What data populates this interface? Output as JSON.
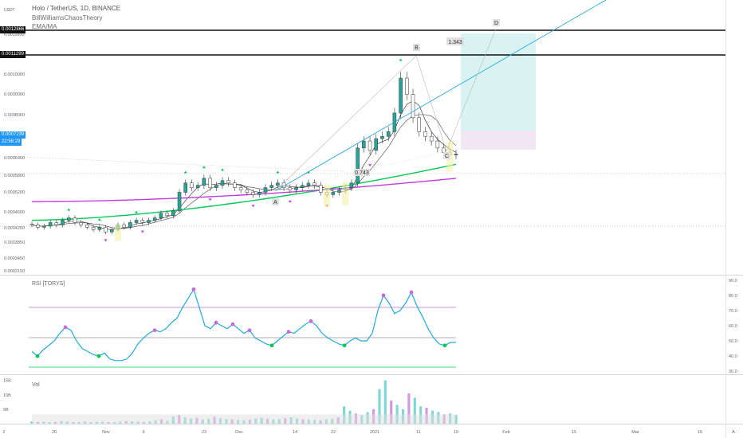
{
  "header": {
    "symbol_line": "Holo / TetherUS, 1D, BINANCE",
    "currency": "USDT",
    "indicator_1": "BillWilliamsChaosTheory",
    "indicator_2": "EMA/MA"
  },
  "price_tags": {
    "top_line": "0.0012866",
    "second_line": "0.0011299",
    "last_price": "0.0007239",
    "countdown": "22:58:29"
  },
  "pattern_labels": {
    "A": "A",
    "B": "B",
    "C": "C",
    "D": "D",
    "ratio_bc": "1.343",
    "ratio_ab": "0.743"
  },
  "panels": {
    "rsi_title": "RSI [TORYS]",
    "vol_title": "Vol"
  },
  "chart_data": [
    {
      "type": "candlestick",
      "title": "Holo / TetherUS, 1D, BINANCE",
      "y_tick_labels": [
        "0.0011600",
        "0.0010000",
        "0.0009000",
        "0.0008000",
        "0.0006400",
        "0.0005800",
        "0.0005200",
        "0.0004600",
        "0.0004200",
        "0.0003850",
        "0.0003450",
        "0.0003150"
      ],
      "x_tick_labels": [
        "2",
        "20",
        "Nov",
        "9",
        "23",
        "Dec",
        "14",
        "22",
        "2021",
        "11",
        "19",
        "Feb",
        "15",
        "Mar",
        "15",
        "A"
      ],
      "horizontal_levels": [
        0.0012866,
        0.0011299
      ],
      "last_price": 0.0007239,
      "closes": [
        0.00042,
        0.00041,
        0.000415,
        0.00043,
        0.00042,
        0.00044,
        0.00045,
        0.00043,
        0.00042,
        0.00041,
        0.0004,
        0.00041,
        0.00039,
        0.0004,
        0.00042,
        0.00041,
        0.00043,
        0.00044,
        0.00043,
        0.00044,
        0.00045,
        0.00047,
        0.00046,
        0.00048,
        0.00056,
        0.0006,
        0.00058,
        0.00059,
        0.00062,
        0.00058,
        0.00059,
        0.00061,
        0.0006,
        0.00058,
        0.00057,
        0.00056,
        0.00055,
        0.00056,
        0.00058,
        0.00059,
        0.0006,
        0.00058,
        0.00057,
        0.00058,
        0.00059,
        0.0006,
        0.00059,
        0.00056,
        0.00055,
        0.00056,
        0.00057,
        0.00058,
        0.0006,
        0.00075,
        0.00078,
        0.00074,
        0.00079,
        0.0008,
        0.00082,
        0.0009,
        0.00105,
        0.00098,
        0.00088,
        0.00082,
        0.0008,
        0.00078,
        0.00075,
        0.00073,
        0.00072,
        0.000724
      ],
      "moving_averages": [
        {
          "color": "#00c853",
          "values_start": 0.00044,
          "values_end": 0.00068
        },
        {
          "color": "#c03cdc",
          "values_start": 0.00052,
          "values_end": 0.00062
        }
      ]
    },
    {
      "type": "line",
      "title": "RSI [TORYS]",
      "y_tick_labels": [
        "90.0",
        "80.0",
        "70.0",
        "60.0",
        "50.0",
        "40.0",
        "30.0"
      ],
      "levels": [
        70,
        50,
        30
      ],
      "ylim": [
        28,
        92
      ],
      "values": [
        43,
        40,
        44,
        47,
        50,
        55,
        59,
        57,
        50,
        45,
        43,
        41,
        40,
        42,
        38,
        37,
        37,
        38,
        42,
        48,
        52,
        55,
        57,
        56,
        58,
        62,
        65,
        72,
        78,
        84,
        72,
        60,
        58,
        62,
        60,
        58,
        61,
        58,
        55,
        57,
        52,
        50,
        48,
        47,
        50,
        53,
        56,
        55,
        58,
        61,
        63,
        60,
        55,
        52,
        50,
        48,
        47,
        50,
        52,
        50,
        50,
        55,
        70,
        80,
        75,
        68,
        70,
        75,
        82,
        73,
        66,
        58,
        52,
        48,
        47,
        49,
        49
      ]
    },
    {
      "type": "bar",
      "title": "Vol",
      "y_tick_labels": [
        "15B",
        "10B",
        "5B"
      ],
      "ylim": [
        0,
        16
      ],
      "values": [
        0.8,
        0.6,
        0.7,
        0.5,
        0.6,
        0.9,
        0.7,
        0.5,
        0.6,
        0.8,
        0.5,
        0.6,
        0.7,
        0.6,
        0.5,
        0.7,
        0.9,
        0.8,
        0.7,
        0.6,
        0.8,
        1.2,
        1.5,
        1.0,
        2.5,
        3.0,
        2.2,
        1.8,
        2.0,
        1.5,
        1.7,
        2.4,
        1.9,
        1.6,
        1.5,
        1.3,
        1.2,
        1.4,
        1.8,
        2.0,
        1.7,
        1.5,
        1.6,
        1.9,
        2.2,
        1.8,
        1.6,
        1.4,
        1.3,
        1.2,
        1.5,
        1.7,
        2.2,
        6.0,
        4.5,
        3.5,
        3.0,
        4.0,
        5.0,
        12.0,
        15.0,
        8.0,
        6.5,
        5.0,
        10.5,
        9.0,
        6.0,
        5.5,
        4.5,
        4.0,
        3.2,
        3.5,
        3.0
      ]
    }
  ],
  "colors": {
    "up": "#26a69a",
    "down": "#555555",
    "rsi_line": "#1eaad6",
    "ma_green": "#00c853",
    "ma_purple": "#c03cdc",
    "zone_profit": "#d9f3f3",
    "zone_stop": "#f3e7f6",
    "rsi_high": "#c86cdc",
    "rsi_low": "#00c853"
  }
}
